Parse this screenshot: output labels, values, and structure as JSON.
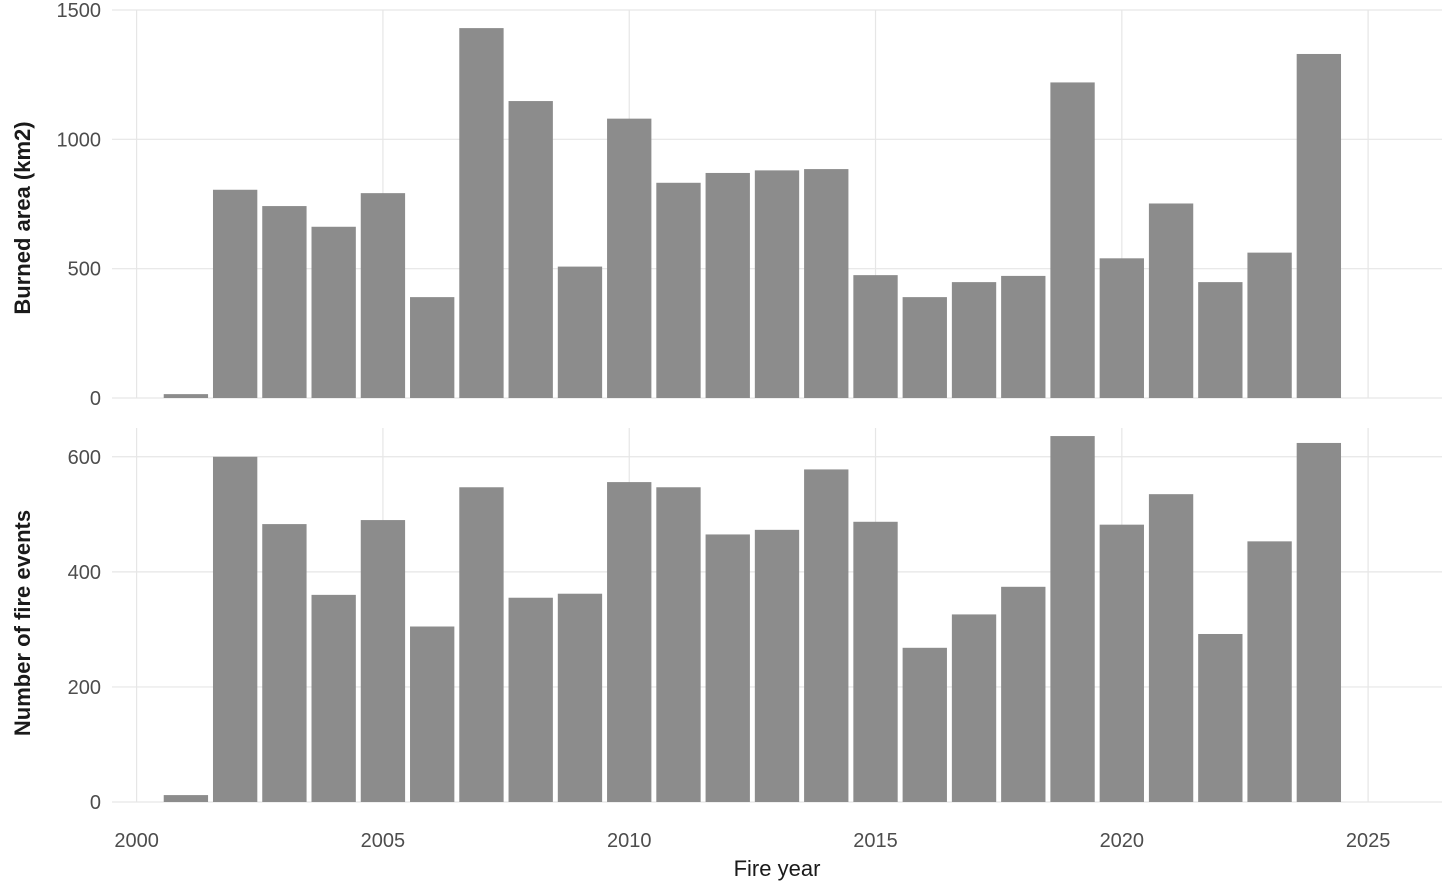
{
  "chart_data": [
    {
      "type": "bar",
      "ylabel": "Burned area (km2)",
      "xlabel": "",
      "ylim": [
        0,
        1500
      ],
      "yticks": [
        0,
        500,
        1000,
        1500
      ],
      "xlim": [
        1999.5,
        2026.5
      ],
      "xticks": [
        2000,
        2005,
        2010,
        2015,
        2020,
        2025
      ],
      "grid": true,
      "color": "#8c8c8c",
      "x": [
        2001,
        2002,
        2003,
        2004,
        2005,
        2006,
        2007,
        2008,
        2009,
        2010,
        2011,
        2012,
        2013,
        2014,
        2015,
        2016,
        2017,
        2018,
        2019,
        2020,
        2021,
        2022,
        2023,
        2024
      ],
      "values": [
        15,
        805,
        742,
        662,
        792,
        390,
        1430,
        1148,
        508,
        1080,
        832,
        870,
        880,
        885,
        475,
        390,
        448,
        472,
        1220,
        540,
        752,
        448,
        562,
        1330
      ]
    },
    {
      "type": "bar",
      "ylabel": "Number of fire events",
      "xlabel": "Fire year",
      "ylim": [
        0,
        650
      ],
      "yticks": [
        0,
        200,
        400,
        600
      ],
      "xlim": [
        1999.5,
        2026.5
      ],
      "xticks": [
        2000,
        2005,
        2010,
        2015,
        2020,
        2025
      ],
      "grid": true,
      "color": "#8c8c8c",
      "x": [
        2001,
        2002,
        2003,
        2004,
        2005,
        2006,
        2007,
        2008,
        2009,
        2010,
        2011,
        2012,
        2013,
        2014,
        2015,
        2016,
        2017,
        2018,
        2019,
        2020,
        2021,
        2022,
        2023,
        2024
      ],
      "values": [
        12,
        600,
        483,
        360,
        490,
        305,
        547,
        355,
        362,
        556,
        547,
        465,
        473,
        578,
        487,
        268,
        326,
        374,
        636,
        482,
        535,
        292,
        453,
        624
      ]
    }
  ]
}
